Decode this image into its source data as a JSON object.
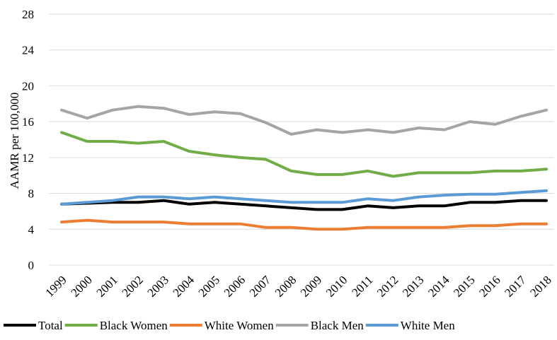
{
  "chart_data": {
    "type": "line",
    "title": "",
    "xlabel": "",
    "ylabel": "AAMR per 100,000",
    "x": [
      "1999",
      "2000",
      "2001",
      "2002",
      "2003",
      "2004",
      "2005",
      "2006",
      "2007",
      "2008",
      "2009",
      "2010",
      "2011",
      "2012",
      "2013",
      "2014",
      "2015",
      "2016",
      "2017",
      "2018"
    ],
    "ylim": [
      0,
      28
    ],
    "yticks": [
      0,
      4,
      8,
      12,
      16,
      20,
      24,
      28
    ],
    "grid": "horizontal",
    "legend_position": "bottom",
    "series": [
      {
        "name": "Total",
        "color": "#000000",
        "values": [
          6.8,
          6.9,
          7.0,
          7.0,
          7.2,
          6.8,
          7.0,
          6.8,
          6.6,
          6.4,
          6.2,
          6.2,
          6.6,
          6.4,
          6.6,
          6.6,
          7.0,
          7.0,
          7.2,
          7.2
        ]
      },
      {
        "name": "Black Women",
        "color": "#70AD47",
        "values": [
          14.8,
          13.8,
          13.8,
          13.6,
          13.8,
          12.7,
          12.3,
          12.0,
          11.8,
          10.5,
          10.1,
          10.1,
          10.5,
          9.9,
          10.3,
          10.3,
          10.3,
          10.5,
          10.5,
          10.7
        ]
      },
      {
        "name": "White Women",
        "color": "#ED7D31",
        "values": [
          4.8,
          5.0,
          4.8,
          4.8,
          4.8,
          4.6,
          4.6,
          4.6,
          4.2,
          4.2,
          4.0,
          4.0,
          4.2,
          4.2,
          4.2,
          4.2,
          4.4,
          4.4,
          4.6,
          4.6
        ]
      },
      {
        "name": "Black Men",
        "color": "#A5A5A5",
        "values": [
          17.3,
          16.4,
          17.3,
          17.7,
          17.5,
          16.8,
          17.1,
          16.9,
          15.9,
          14.6,
          15.1,
          14.8,
          15.1,
          14.8,
          15.3,
          15.1,
          16.0,
          15.7,
          16.6,
          17.3
        ]
      },
      {
        "name": "White Men",
        "color": "#5B9BD5",
        "values": [
          6.8,
          7.0,
          7.2,
          7.6,
          7.6,
          7.4,
          7.6,
          7.4,
          7.2,
          7.0,
          7.0,
          7.0,
          7.4,
          7.2,
          7.6,
          7.8,
          7.9,
          7.9,
          8.1,
          8.3
        ]
      }
    ]
  }
}
